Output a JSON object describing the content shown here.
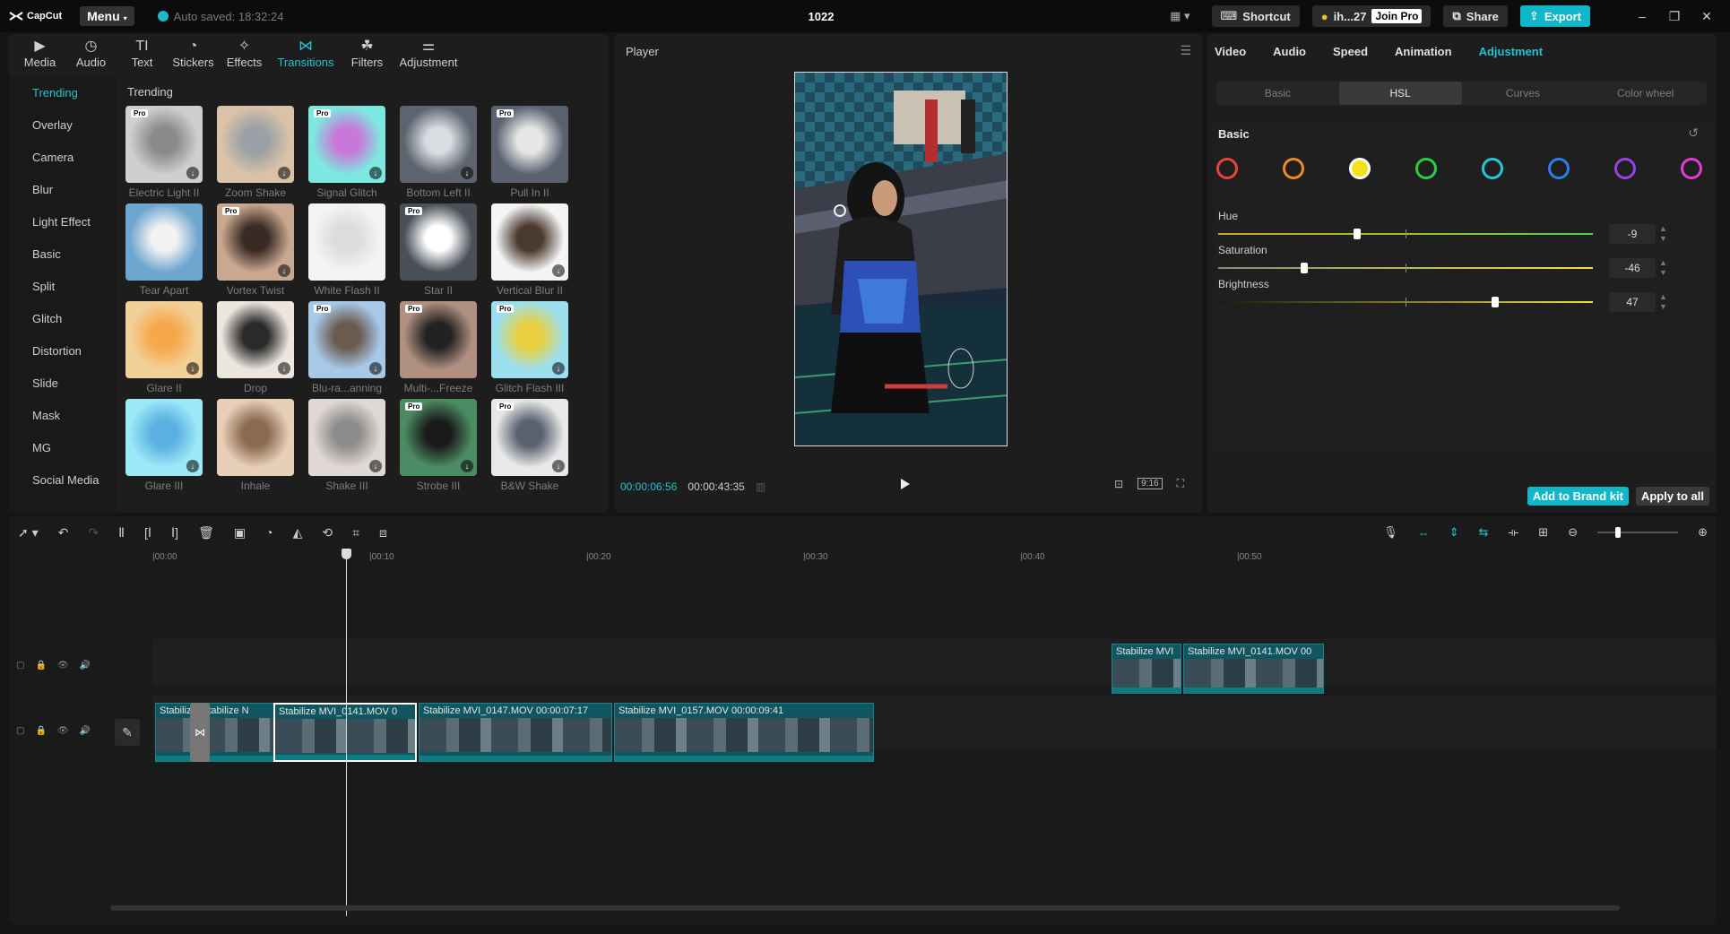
{
  "titlebar": {
    "logo": "CapCut",
    "menu": "Menu",
    "autosave": "Auto saved: 18:32:24",
    "project_title": "1022",
    "shortcut": "Shortcut",
    "user": "ih...27",
    "join_pro": "Join Pro",
    "share": "Share",
    "export": "Export"
  },
  "tool_tabs": [
    {
      "label": "Media",
      "icon": "media-icon"
    },
    {
      "label": "Audio",
      "icon": "audio-icon"
    },
    {
      "label": "Text",
      "icon": "text-icon"
    },
    {
      "label": "Stickers",
      "icon": "stickers-icon"
    },
    {
      "label": "Effects",
      "icon": "effects-icon"
    },
    {
      "label": "Transitions",
      "icon": "transitions-icon",
      "active": true
    },
    {
      "label": "Filters",
      "icon": "filters-icon"
    },
    {
      "label": "Adjustment",
      "icon": "adjustment-icon"
    }
  ],
  "sidebar": [
    "Trending",
    "Overlay",
    "Camera",
    "Blur",
    "Light Effect",
    "Basic",
    "Split",
    "Glitch",
    "Distortion",
    "Slide",
    "Mask",
    "MG",
    "Social Media"
  ],
  "grid_title": "Trending",
  "transitions": [
    {
      "label": "Electric Light II",
      "pro": true
    },
    {
      "label": "Zoom Shake",
      "pro": false
    },
    {
      "label": "Signal Glitch",
      "pro": true
    },
    {
      "label": "Bottom Left II",
      "pro": false
    },
    {
      "label": "Pull In II",
      "pro": true
    },
    {
      "label": "Tear Apart",
      "pro": false
    },
    {
      "label": "Vortex Twist",
      "pro": true
    },
    {
      "label": "White Flash II",
      "pro": false
    },
    {
      "label": "Star II",
      "pro": true
    },
    {
      "label": "Vertical Blur II",
      "pro": false
    },
    {
      "label": "Glare II",
      "pro": false
    },
    {
      "label": "Drop",
      "pro": false
    },
    {
      "label": "Blu-ra...anning",
      "pro": true
    },
    {
      "label": "Multi-...Freeze",
      "pro": true
    },
    {
      "label": "Glitch Flash III",
      "pro": true
    },
    {
      "label": "Glare III",
      "pro": false
    },
    {
      "label": "Inhale",
      "pro": false
    },
    {
      "label": "Shake III",
      "pro": false
    },
    {
      "label": "Strobe III",
      "pro": true
    },
    {
      "label": "B&W Shake",
      "pro": true
    }
  ],
  "player": {
    "title": "Player",
    "current_time": "00:00:06:56",
    "total_time": "00:00:43:35",
    "ratio": "9:16"
  },
  "inspector": {
    "tabs": [
      "Video",
      "Audio",
      "Speed",
      "Animation",
      "Adjustment"
    ],
    "active_tab": "Adjustment",
    "segments": [
      "Basic",
      "HSL",
      "Curves",
      "Color wheel"
    ],
    "active_segment": "HSL",
    "section": "Basic",
    "colors": [
      "#e8433c",
      "#f08a25",
      "#f2e21b",
      "#2ecc40",
      "#22c8d6",
      "#2f7bef",
      "#9b3fe0",
      "#e23bd6"
    ],
    "selected_color": 2,
    "sliders": [
      {
        "label": "Hue",
        "value": "-9",
        "fraction": 0.37,
        "track": "hue"
      },
      {
        "label": "Saturation",
        "value": "-46",
        "fraction": 0.23,
        "track": "sat"
      },
      {
        "label": "Brightness",
        "value": "47",
        "fraction": 0.74,
        "track": "bri"
      }
    ],
    "add_brand": "Add to Brand kit",
    "apply_all": "Apply to all"
  },
  "timeline": {
    "ruler": [
      "|00:00",
      "|00:10",
      "|00:20",
      "|00:30",
      "|00:40",
      "|00:50"
    ],
    "overlay_clips": [
      {
        "label": "Stabilize  MVI"
      },
      {
        "label": "Stabilize  MVI_0141.MOV  00"
      }
    ],
    "main_clips": [
      {
        "label": "Stabiliz"
      },
      {
        "label": "Stabilize  N"
      },
      {
        "label": "Stabilize  MVI_0141.MOV  0"
      },
      {
        "label": "Stabilize  MVI_0147.MOV  00:00:07:17"
      },
      {
        "label": "Stabilize  MVI_0157.MOV  00:00:09:41"
      }
    ]
  }
}
